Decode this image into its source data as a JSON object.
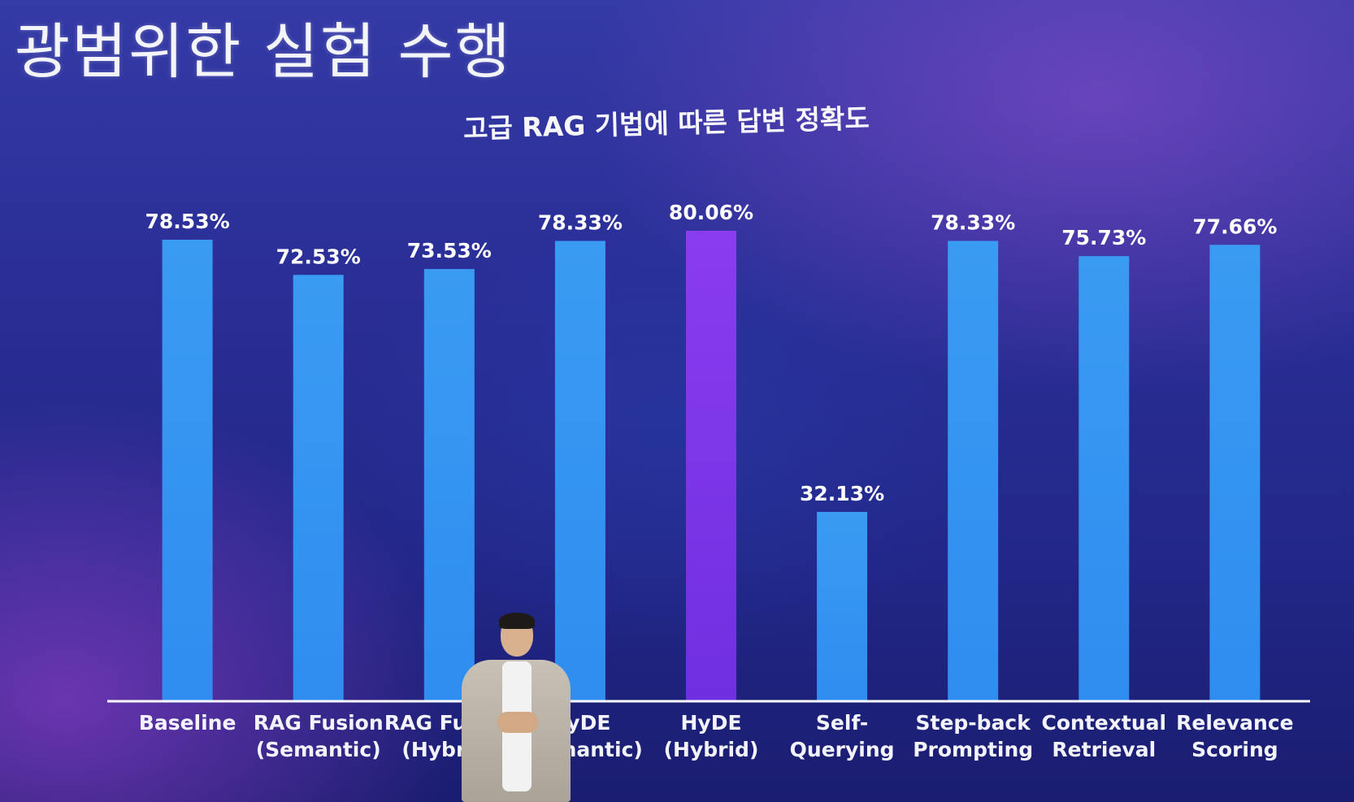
{
  "slide": {
    "title": "광범위한 실험 수행"
  },
  "chart_data": {
    "type": "bar",
    "title": "고급 RAG 기법에 따른 답변 정확도",
    "categories": [
      [
        "Baseline"
      ],
      [
        "RAG Fusion",
        "(Semantic)"
      ],
      [
        "RAG Fusion",
        "(Hybrid)"
      ],
      [
        "HyDE",
        "(Semantic)"
      ],
      [
        "HyDE",
        "(Hybrid)"
      ],
      [
        "Self-",
        "Querying"
      ],
      [
        "Step-back",
        "Prompting"
      ],
      [
        "Contextual",
        "Retrieval"
      ],
      [
        "Relevance",
        "Scoring"
      ]
    ],
    "values": [
      78.53,
      72.53,
      73.53,
      78.33,
      80.06,
      32.13,
      78.33,
      75.73,
      77.66
    ],
    "value_labels": [
      "78.53%",
      "72.53%",
      "73.53%",
      "78.33%",
      "80.06%",
      "32.13%",
      "78.33%",
      "75.73%",
      "77.66%"
    ],
    "highlight_index": 4,
    "colors": {
      "bar": "#3a9bf2",
      "highlight": "#8a3cf0",
      "axis": "#ffffff"
    },
    "ylim": [
      0,
      100
    ],
    "grid": false,
    "legend": "none"
  }
}
